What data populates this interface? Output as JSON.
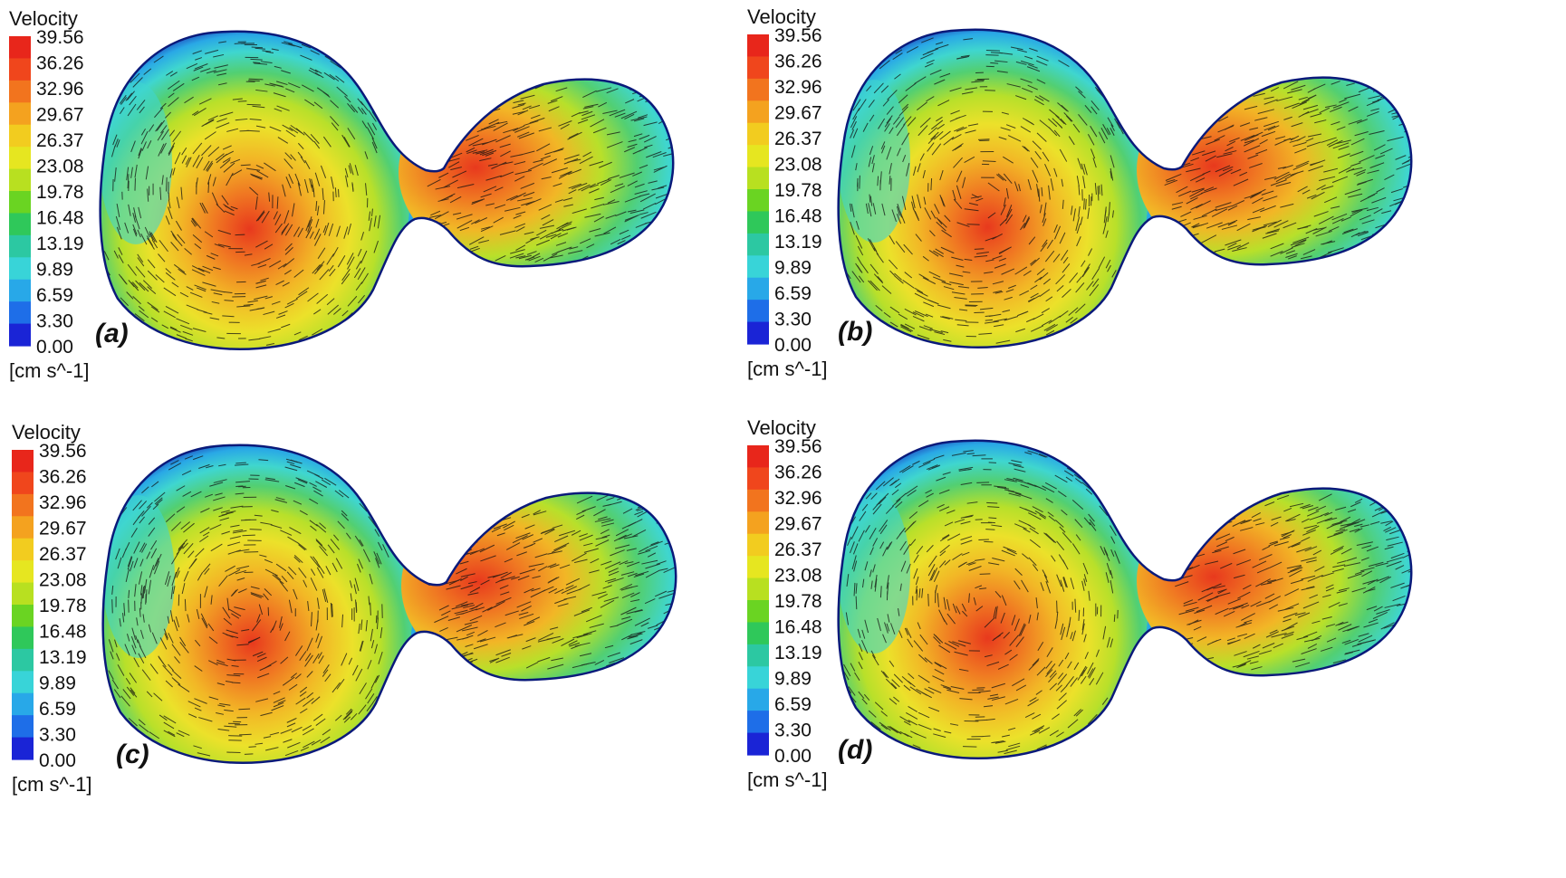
{
  "figure": {
    "legend": {
      "title": "Velocity",
      "unit": "[cm s^-1]",
      "ticks": [
        "39.56",
        "36.26",
        "32.96",
        "29.67",
        "26.37",
        "23.08",
        "19.78",
        "16.48",
        "13.19",
        "9.89",
        "6.59",
        "3.30",
        "0.00"
      ],
      "colors": [
        "#e8261b",
        "#f0461c",
        "#f2741e",
        "#f4a21f",
        "#f2cc1f",
        "#e6e620",
        "#b8e020",
        "#6ad422",
        "#2fc85a",
        "#2cc8a2",
        "#38d4d8",
        "#28a8e8",
        "#1e6ee8",
        "#1a24d6"
      ]
    },
    "panels": [
      {
        "label": "(a)"
      },
      {
        "label": "(b)"
      },
      {
        "label": "(c)"
      },
      {
        "label": "(d)"
      }
    ],
    "contour_colors": [
      "#1f3fb8",
      "#29a8e6",
      "#3fd6cf",
      "#52cf72",
      "#b8e02a",
      "#ece12a",
      "#f2b626",
      "#f07a22",
      "#e8391d"
    ]
  }
}
